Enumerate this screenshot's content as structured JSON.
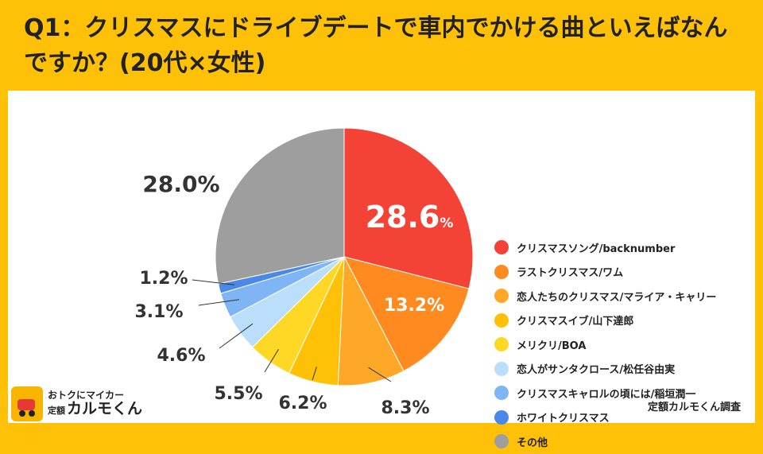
{
  "header": {
    "title": "Q1：クリスマスにドライブデートで車内でかける曲といえばなんですか？(20代×女性)"
  },
  "chart_data": {
    "type": "pie",
    "title": "Q1：クリスマスにドライブデートで車内でかける曲といえばなんですか？(20代×女性)",
    "start_angle_deg": 0,
    "direction": "clockwise",
    "slices": [
      {
        "label": "クリスマスソング/backnumber",
        "value": 28.6,
        "display": "28.6",
        "unit": "%",
        "color": "#F44336"
      },
      {
        "label": "ラストクリスマス/ワム",
        "value": 13.2,
        "display": "13.2%",
        "color": "#FF8A1F"
      },
      {
        "label": "恋人たちのクリスマス/マライア・キャリー",
        "value": 8.3,
        "display": "8.3%",
        "color": "#FFA726"
      },
      {
        "label": "クリスマスイブ/山下達郎",
        "value": 6.2,
        "display": "6.2%",
        "color": "#FFC107"
      },
      {
        "label": "メリクリ/BOA",
        "value": 5.5,
        "display": "5.5%",
        "color": "#FFD826"
      },
      {
        "label": "恋人がサンタクロース/松任谷由実",
        "value": 4.6,
        "display": "4.6%",
        "color": "#BBDEFB"
      },
      {
        "label": "クリスマスキャロルの頃には/稲垣潤一",
        "value": 3.1,
        "display": "3.1%",
        "color": "#7FB4F5"
      },
      {
        "label": "ホワイトクリスマス",
        "value": 1.2,
        "display": "1.2%",
        "color": "#4A89E8"
      },
      {
        "label": "その他",
        "value": 28.0,
        "display": "28.0%",
        "color": "#9E9E9E"
      }
    ],
    "legend_position": "right"
  },
  "footer": {
    "credit": "定額カルモくん調査",
    "logo_line1": "おトクにマイカー",
    "logo_prefix": "定額",
    "logo_name": "カルモくん"
  }
}
